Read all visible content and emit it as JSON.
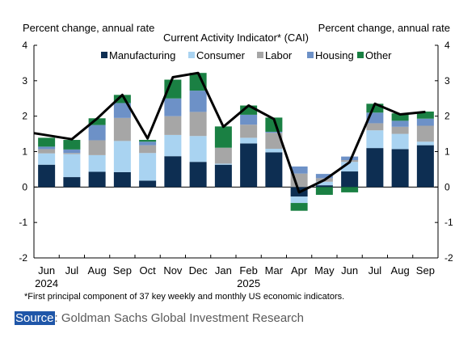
{
  "colors": {
    "Manufacturing": "#0d2e52",
    "Consumer": "#a9d3f1",
    "Labor": "#a6a6a6",
    "Housing": "#6d91c7",
    "Other": "#1a8043",
    "cai_line": "#000000"
  },
  "chart_data": {
    "type": "bar",
    "stacked": true,
    "title": "Current Activity Indicator* (CAI)",
    "ylabel_left": "Percent change, annual rate",
    "ylabel_right": "Percent change, annual rate",
    "ylim": [
      -2,
      4
    ],
    "yticks": [
      -2,
      -1,
      0,
      1,
      2,
      3,
      4
    ],
    "categories": [
      "Jun",
      "Jul",
      "Aug",
      "Sep",
      "Oct",
      "Nov",
      "Dec",
      "Jan",
      "Feb",
      "Mar",
      "Apr",
      "May",
      "Jun",
      "Jul",
      "Aug",
      "Sep"
    ],
    "year_labels": [
      {
        "category_index": 0,
        "label": "2024"
      },
      {
        "category_index": 8,
        "label": "2025"
      }
    ],
    "legend_position": "top-center",
    "series": [
      {
        "name": "Manufacturing",
        "values": [
          0.63,
          0.28,
          0.43,
          0.42,
          0.18,
          0.87,
          0.71,
          0.63,
          1.23,
          0.98,
          -0.27,
          0.05,
          0.44,
          1.1,
          1.07,
          1.18
        ]
      },
      {
        "name": "Consumer",
        "values": [
          0.32,
          0.65,
          0.47,
          0.88,
          0.78,
          0.6,
          0.73,
          0.03,
          0.16,
          0.1,
          -0.18,
          0.1,
          0.27,
          0.5,
          0.43,
          0.1
        ]
      },
      {
        "name": "Labor",
        "values": [
          0.12,
          0.03,
          0.42,
          0.65,
          0.22,
          0.53,
          0.68,
          0.45,
          0.37,
          0.45,
          0.38,
          0.1,
          0.05,
          0.2,
          0.2,
          0.45
        ]
      },
      {
        "name": "Housing",
        "values": [
          0.07,
          0.1,
          0.43,
          0.42,
          0.1,
          0.5,
          0.6,
          0.0,
          0.28,
          0.03,
          0.2,
          0.12,
          0.1,
          0.3,
          0.17,
          0.2
        ]
      },
      {
        "name": "Other",
        "values": [
          0.25,
          0.27,
          0.19,
          0.23,
          0.05,
          0.53,
          0.5,
          0.6,
          0.26,
          0.4,
          -0.22,
          -0.22,
          -0.15,
          0.25,
          0.21,
          0.2
        ]
      }
    ],
    "line": {
      "name": "CAI",
      "values": [
        1.52,
        1.35,
        1.93,
        2.6,
        1.37,
        3.1,
        3.22,
        1.7,
        2.3,
        1.92,
        -0.15,
        0.2,
        0.7,
        2.35,
        2.05,
        2.12
      ]
    }
  },
  "footnote": "*First principal component of 37 key weekly and monthly US economic indicators.",
  "source": {
    "label": "Source",
    "rest": ": Goldman Sachs Global Investment Research"
  }
}
